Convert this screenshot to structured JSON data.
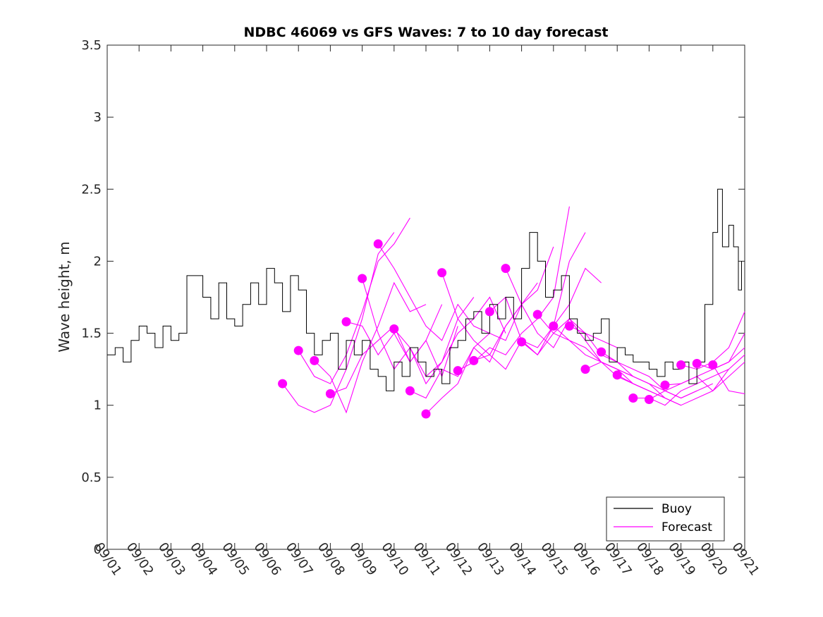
{
  "chart_data": {
    "type": "line",
    "title": "NDBC 46069 vs GFS Waves: 7 to 10 day forecast",
    "xlabel": "",
    "ylabel": "Wave height, m",
    "x_unit": "days since 09/01",
    "xlim": [
      0,
      20
    ],
    "ylim": [
      0,
      3.5
    ],
    "x_ticks": [
      0,
      1,
      2,
      3,
      4,
      5,
      6,
      7,
      8,
      9,
      10,
      11,
      12,
      13,
      14,
      15,
      16,
      17,
      18,
      19,
      20
    ],
    "x_tick_labels": [
      "09/01",
      "09/02",
      "09/03",
      "09/04",
      "09/05",
      "09/06",
      "09/07",
      "09/08",
      "09/09",
      "09/10",
      "09/11",
      "09/12",
      "09/13",
      "09/14",
      "09/15",
      "09/16",
      "09/17",
      "09/18",
      "09/19",
      "09/20",
      "09/21"
    ],
    "y_ticks": [
      0,
      0.5,
      1,
      1.5,
      2,
      2.5,
      3,
      3.5
    ],
    "y_tick_labels": [
      "0",
      "0.5",
      "1",
      "1.5",
      "2",
      "2.5",
      "3",
      "3.5"
    ],
    "colors": {
      "buoy": "#000000",
      "forecast": "#ff00ff"
    },
    "legend": {
      "location": "bottom-right",
      "entries": [
        {
          "label": "Buoy",
          "color": "#000000"
        },
        {
          "label": "Forecast",
          "color": "#ff00ff"
        }
      ]
    },
    "buoy": {
      "name": "Buoy",
      "x": [
        0,
        0.25,
        0.5,
        0.75,
        1,
        1.25,
        1.5,
        1.75,
        2,
        2.25,
        2.5,
        2.75,
        3,
        3.25,
        3.5,
        3.75,
        4,
        4.25,
        4.5,
        4.75,
        5,
        5.25,
        5.5,
        5.75,
        6,
        6.25,
        6.5,
        6.75,
        7,
        7.25,
        7.5,
        7.75,
        8,
        8.25,
        8.5,
        8.75,
        9,
        9.25,
        9.5,
        9.75,
        10,
        10.25,
        10.5,
        10.75,
        11,
        11.25,
        11.5,
        11.75,
        12,
        12.25,
        12.5,
        12.75,
        13,
        13.25,
        13.5,
        13.75,
        14,
        14.25,
        14.5,
        14.75,
        15,
        15.25,
        15.5,
        15.75,
        16,
        16.25,
        16.5,
        16.75,
        17,
        17.25,
        17.5,
        17.75,
        18,
        18.25,
        18.5,
        18.75,
        19,
        19.15,
        19.3,
        19.5,
        19.65,
        19.8,
        19.9
      ],
      "values": [
        1.35,
        1.4,
        1.3,
        1.45,
        1.55,
        1.5,
        1.4,
        1.55,
        1.45,
        1.5,
        1.9,
        1.9,
        1.75,
        1.6,
        1.85,
        1.6,
        1.55,
        1.7,
        1.85,
        1.7,
        1.95,
        1.85,
        1.65,
        1.9,
        1.8,
        1.5,
        1.35,
        1.45,
        1.5,
        1.25,
        1.45,
        1.35,
        1.45,
        1.25,
        1.2,
        1.1,
        1.3,
        1.2,
        1.4,
        1.3,
        1.2,
        1.25,
        1.15,
        1.4,
        1.45,
        1.6,
        1.65,
        1.5,
        1.7,
        1.6,
        1.75,
        1.6,
        1.95,
        2.2,
        2.0,
        1.75,
        1.8,
        1.9,
        1.6,
        1.5,
        1.45,
        1.5,
        1.6,
        1.3,
        1.4,
        1.35,
        1.3,
        1.3,
        1.25,
        1.2,
        1.3,
        1.25,
        1.3,
        1.15,
        1.3,
        1.7,
        2.2,
        2.5,
        2.1,
        2.25,
        2.1,
        1.8,
        2.0
      ]
    },
    "forecast_lines": [
      {
        "x": [
          5.5,
          6.0,
          6.5,
          7.0,
          7.5,
          8.0,
          8.5,
          9.0
        ],
        "values": [
          1.15,
          1.0,
          0.95,
          1.0,
          1.25,
          1.6,
          2.05,
          2.2
        ]
      },
      {
        "x": [
          6.0,
          6.5,
          7.0,
          7.5,
          8.0,
          8.5,
          9.0,
          9.5
        ],
        "values": [
          1.38,
          1.2,
          1.15,
          1.35,
          1.65,
          2.0,
          2.12,
          2.3
        ]
      },
      {
        "x": [
          6.5,
          7.0,
          7.5,
          8.0,
          8.5,
          9.0,
          9.5,
          10.0
        ],
        "values": [
          1.31,
          1.2,
          0.95,
          1.3,
          1.55,
          1.85,
          1.65,
          1.7
        ]
      },
      {
        "x": [
          7.0,
          7.5,
          8.0,
          8.5,
          9.0,
          9.5,
          10.0,
          10.5
        ],
        "values": [
          1.08,
          1.12,
          1.35,
          1.45,
          1.55,
          1.3,
          1.45,
          1.7
        ]
      },
      {
        "x": [
          7.5,
          8.0,
          8.5,
          9.0,
          9.5,
          10.0,
          10.5,
          11.0
        ],
        "values": [
          1.58,
          1.55,
          1.35,
          1.5,
          1.3,
          1.45,
          1.2,
          1.55
        ]
      },
      {
        "x": [
          8.0,
          8.5,
          9.0,
          9.5,
          10.0,
          10.5,
          11.0,
          11.5
        ],
        "values": [
          1.88,
          1.5,
          1.25,
          1.4,
          1.2,
          1.3,
          1.6,
          1.75
        ]
      },
      {
        "x": [
          8.5,
          9.0,
          9.5,
          10.0,
          10.5,
          11.0,
          11.5,
          12.0
        ],
        "values": [
          2.12,
          1.95,
          1.75,
          1.55,
          1.45,
          1.7,
          1.55,
          1.5
        ]
      },
      {
        "x": [
          9.0,
          9.5,
          10.0,
          10.5,
          11.0,
          11.5,
          12.0,
          12.5
        ],
        "values": [
          1.53,
          1.4,
          1.15,
          1.3,
          1.5,
          1.6,
          1.75,
          1.5
        ]
      },
      {
        "x": [
          9.5,
          10.0,
          10.5,
          11.0,
          11.5,
          12.0,
          12.5,
          13.0
        ],
        "values": [
          1.1,
          1.05,
          1.25,
          1.2,
          1.4,
          1.5,
          1.45,
          1.7
        ]
      },
      {
        "x": [
          10.0,
          10.5,
          11.0,
          11.5,
          12.0,
          12.5,
          13.0,
          13.5
        ],
        "values": [
          0.94,
          1.05,
          1.15,
          1.4,
          1.3,
          1.55,
          1.7,
          1.85
        ]
      },
      {
        "x": [
          10.5,
          11.0,
          11.5,
          12.0,
          12.5,
          13.0,
          13.5,
          14.0
        ],
        "values": [
          1.92,
          1.6,
          1.45,
          1.35,
          1.55,
          1.7,
          1.8,
          2.1
        ]
      },
      {
        "x": [
          11.0,
          11.5,
          12.0,
          12.5,
          13.0,
          13.5,
          14.0,
          14.5
        ],
        "values": [
          1.24,
          1.3,
          1.4,
          1.35,
          1.5,
          1.6,
          1.75,
          2.38
        ]
      },
      {
        "x": [
          11.5,
          12.0,
          12.5,
          13.0,
          13.5,
          14.0,
          14.5,
          15.0
        ],
        "values": [
          1.31,
          1.35,
          1.25,
          1.45,
          1.35,
          1.55,
          2.0,
          2.2
        ]
      },
      {
        "x": [
          12.0,
          12.5,
          13.0,
          13.5,
          14.0,
          14.5,
          15.0,
          15.5
        ],
        "values": [
          1.65,
          1.75,
          1.45,
          1.4,
          1.55,
          1.7,
          1.95,
          1.85
        ]
      },
      {
        "x": [
          12.5,
          13.0,
          13.5,
          14.0,
          14.5,
          15.0,
          15.5,
          16.0
        ],
        "values": [
          1.95,
          1.7,
          1.5,
          1.4,
          1.6,
          1.5,
          1.45,
          1.4
        ]
      },
      {
        "x": [
          13.0,
          13.5,
          14.0,
          14.5,
          15.0,
          15.5,
          16.0,
          16.5
        ],
        "values": [
          1.44,
          1.35,
          1.5,
          1.6,
          1.45,
          1.3,
          1.25,
          1.2
        ]
      },
      {
        "x": [
          13.5,
          14.0,
          14.5,
          15.0,
          15.5,
          16.0,
          16.5,
          17.0
        ],
        "values": [
          1.63,
          1.5,
          1.45,
          1.35,
          1.3,
          1.25,
          1.15,
          1.1
        ]
      },
      {
        "x": [
          14.0,
          14.5,
          15.0,
          15.5,
          16.0,
          16.5,
          17.0,
          17.5
        ],
        "values": [
          1.55,
          1.45,
          1.4,
          1.3,
          1.2,
          1.15,
          1.1,
          1.05
        ]
      },
      {
        "x": [
          14.5,
          15.0,
          15.5,
          16.0,
          16.5,
          17.0,
          17.5,
          18.0
        ],
        "values": [
          1.55,
          1.5,
          1.35,
          1.3,
          1.2,
          1.15,
          1.05,
          1.0
        ]
      },
      {
        "x": [
          15.0,
          15.5,
          16.0,
          16.5,
          17.0,
          17.5,
          18.0,
          18.5
        ],
        "values": [
          1.25,
          1.3,
          1.25,
          1.2,
          1.15,
          1.1,
          1.05,
          1.1
        ]
      },
      {
        "x": [
          15.5,
          16.0,
          16.5,
          17.0,
          17.5,
          18.0,
          18.5,
          19.0
        ],
        "values": [
          1.37,
          1.3,
          1.25,
          1.2,
          1.1,
          1.05,
          1.1,
          1.15
        ]
      },
      {
        "x": [
          16.0,
          16.5,
          17.0,
          17.5,
          18.0,
          18.5,
          19.0,
          19.5
        ],
        "values": [
          1.21,
          1.15,
          1.1,
          1.05,
          1.0,
          1.05,
          1.1,
          1.25
        ]
      },
      {
        "x": [
          16.5,
          17.0,
          17.5,
          18.0,
          18.5,
          19.0,
          19.5,
          20.0
        ],
        "values": [
          1.05,
          1.05,
          1.0,
          1.1,
          1.15,
          1.2,
          1.25,
          1.35
        ]
      },
      {
        "x": [
          17.0,
          17.5,
          18.0,
          18.5,
          19.0,
          19.5,
          20.0
        ],
        "values": [
          1.04,
          1.1,
          1.15,
          1.2,
          1.1,
          1.2,
          1.3
        ]
      },
      {
        "x": [
          17.5,
          18.0,
          18.5,
          19.0,
          19.5,
          20.0
        ],
        "values": [
          1.14,
          1.15,
          1.2,
          1.25,
          1.3,
          1.4
        ]
      },
      {
        "x": [
          18.0,
          18.5,
          19.0,
          19.5,
          20.0
        ],
        "values": [
          1.28,
          1.25,
          1.3,
          1.4,
          1.65
        ]
      },
      {
        "x": [
          18.5,
          19.0,
          19.5,
          20.0
        ],
        "values": [
          1.29,
          1.25,
          1.3,
          1.5
        ]
      },
      {
        "x": [
          19.0,
          19.5,
          20.0
        ],
        "values": [
          1.28,
          1.1,
          1.08
        ]
      }
    ],
    "forecast_points": {
      "name": "Forecast",
      "x": [
        5.5,
        6.0,
        6.5,
        7.0,
        7.5,
        8.0,
        8.5,
        9.0,
        9.5,
        10.0,
        10.5,
        11.0,
        11.5,
        12.0,
        12.5,
        13.0,
        13.5,
        14.0,
        14.5,
        15.0,
        15.5,
        16.0,
        16.5,
        17.0,
        17.5,
        18.0,
        18.5,
        19.0
      ],
      "values": [
        1.15,
        1.38,
        1.31,
        1.08,
        1.58,
        1.88,
        2.12,
        1.53,
        1.1,
        0.94,
        1.92,
        1.24,
        1.31,
        1.65,
        1.95,
        1.44,
        1.63,
        1.55,
        1.55,
        1.25,
        1.37,
        1.21,
        1.05,
        1.04,
        1.14,
        1.28,
        1.29,
        1.28
      ]
    }
  }
}
